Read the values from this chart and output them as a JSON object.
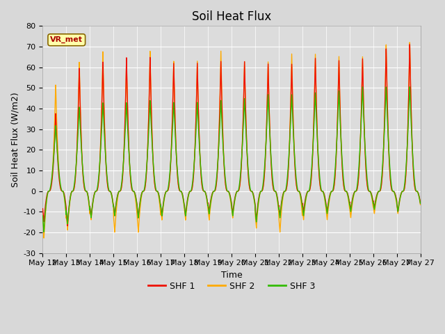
{
  "title": "Soil Heat Flux",
  "xlabel": "Time",
  "ylabel": "Soil Heat Flux (W/m2)",
  "ylim": [
    -30,
    80
  ],
  "yticks": [
    -30,
    -20,
    -10,
    0,
    10,
    20,
    30,
    40,
    50,
    60,
    70,
    80
  ],
  "background_color": "#d8d8d8",
  "plot_bg_color": "#dcdcdc",
  "shf1_color": "#ee1100",
  "shf2_color": "#ffaa00",
  "shf3_color": "#33bb00",
  "legend_label1": "SHF 1",
  "legend_label2": "SHF 2",
  "legend_label3": "SHF 3",
  "annotation_text": "VR_met",
  "annotation_color": "#aa0000",
  "annotation_bg": "#ffffaa",
  "n_days": 16,
  "x_tick_labels": [
    "May 12",
    "May 13",
    "May 14",
    "May 15",
    "May 16",
    "May 17",
    "May 18",
    "May 19",
    "May 20",
    "May 21",
    "May 22",
    "May 23",
    "May 24",
    "May 25",
    "May 26",
    "May 27"
  ],
  "title_fontsize": 12,
  "axis_fontsize": 9,
  "tick_fontsize": 8,
  "linewidth": 1.0,
  "shf1_day_peaks": [
    38,
    60,
    63,
    65,
    65,
    62,
    62,
    63,
    63,
    62,
    62,
    65,
    64,
    65,
    70,
    72
  ],
  "shf1_night": [
    -15,
    -17,
    -13,
    -12,
    -13,
    -12,
    -12,
    -10,
    -11,
    -14,
    -12,
    -10,
    -10,
    -9,
    -8,
    -10
  ],
  "shf2_day_peaks": [
    52,
    63,
    68,
    63,
    68,
    63,
    63,
    68,
    63,
    63,
    67,
    67,
    66,
    66,
    72,
    73
  ],
  "shf2_night": [
    -23,
    -19,
    -14,
    -20,
    -20,
    -14,
    -14,
    -14,
    -13,
    -18,
    -20,
    -14,
    -14,
    -13,
    -11,
    -11
  ],
  "shf3_day_peaks": [
    32,
    41,
    43,
    43,
    44,
    43,
    43,
    44,
    45,
    47,
    47,
    48,
    49,
    51,
    51,
    51
  ],
  "shf3_night": [
    -20,
    -16,
    -13,
    -12,
    -13,
    -12,
    -12,
    -11,
    -12,
    -15,
    -13,
    -12,
    -11,
    -10,
    -9,
    -10
  ]
}
